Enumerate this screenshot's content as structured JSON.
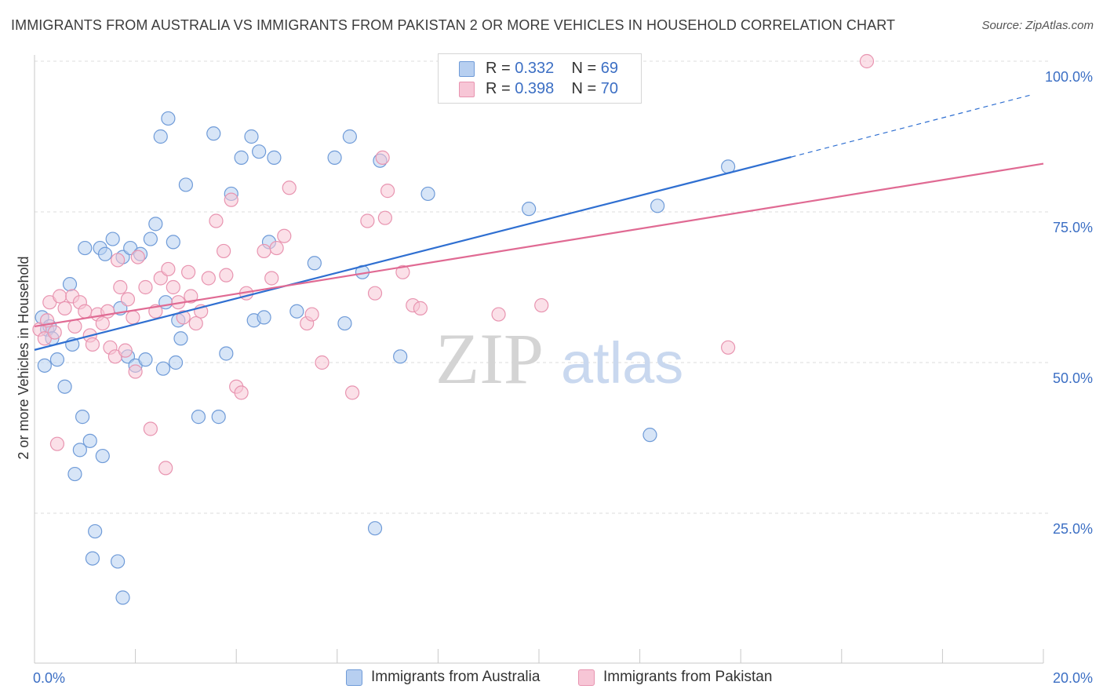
{
  "header": {
    "title": "IMMIGRANTS FROM AUSTRALIA VS IMMIGRANTS FROM PAKISTAN 2 OR MORE VEHICLES IN HOUSEHOLD CORRELATION CHART",
    "source": "Source: ZipAtlas.com"
  },
  "legend": {
    "r_label": "R =",
    "n_label": "N =",
    "rows": [
      {
        "r": "0.332",
        "n": "69"
      },
      {
        "r": "0.398",
        "n": "70"
      }
    ]
  },
  "watermark": {
    "zip": "ZIP",
    "atlas": "atlas"
  },
  "colors": {
    "australia_fill": "#b7cff0",
    "australia_stroke": "#6f9bd8",
    "australia_line": "#2f6fd1",
    "pakistan_fill": "#f7c6d6",
    "pakistan_stroke": "#e894b0",
    "pakistan_line": "#e06a93",
    "axis_text": "#3c6fc4",
    "grid": "#dddddd"
  },
  "chart_data": {
    "type": "scatter",
    "title": "IMMIGRANTS FROM AUSTRALIA VS IMMIGRANTS FROM PAKISTAN 2 OR MORE VEHICLES IN HOUSEHOLD CORRELATION CHART",
    "xlabel": "",
    "ylabel": "2 or more Vehicles in Household",
    "xlim": [
      0,
      20
    ],
    "ylim": [
      0,
      102
    ],
    "x_tick_labels": [
      "0.0%",
      "20.0%"
    ],
    "y_ticks": [
      25,
      50,
      75,
      100
    ],
    "y_tick_labels": [
      "25.0%",
      "50.0%",
      "75.0%",
      "100.0%"
    ],
    "grid": "horizontal dashed",
    "legend_position": "top-center",
    "series": [
      {
        "name": "Immigrants from Australia",
        "r": 0.332,
        "n": 69,
        "trend": {
          "x": [
            0,
            15
          ],
          "y": [
            52.1,
            84.1
          ],
          "extend_to_x": 19.8,
          "extend_to_y": 94.5
        },
        "points": [
          [
            0.15,
            57.5
          ],
          [
            0.25,
            55.5
          ],
          [
            0.2,
            49.5
          ],
          [
            0.3,
            56.0
          ],
          [
            0.35,
            54.0
          ],
          [
            0.45,
            50.5
          ],
          [
            0.6,
            46.0
          ],
          [
            0.7,
            63.0
          ],
          [
            0.75,
            53.0
          ],
          [
            0.8,
            31.5
          ],
          [
            0.9,
            35.5
          ],
          [
            0.95,
            41.0
          ],
          [
            1.0,
            69.0
          ],
          [
            1.1,
            37.0
          ],
          [
            1.15,
            17.5
          ],
          [
            1.2,
            22.0
          ],
          [
            1.3,
            69.0
          ],
          [
            1.35,
            34.5
          ],
          [
            1.4,
            68.0
          ],
          [
            1.55,
            70.5
          ],
          [
            1.65,
            17.0
          ],
          [
            1.7,
            59.0
          ],
          [
            1.75,
            67.5
          ],
          [
            1.75,
            11.0
          ],
          [
            1.85,
            51.0
          ],
          [
            1.9,
            69.0
          ],
          [
            2.0,
            49.5
          ],
          [
            2.1,
            68.0
          ],
          [
            2.2,
            50.5
          ],
          [
            2.3,
            70.5
          ],
          [
            2.4,
            73.0
          ],
          [
            2.5,
            87.5
          ],
          [
            2.55,
            49.0
          ],
          [
            2.6,
            60.0
          ],
          [
            2.65,
            90.5
          ],
          [
            2.75,
            70.0
          ],
          [
            2.8,
            50.0
          ],
          [
            2.85,
            57.0
          ],
          [
            2.9,
            54.0
          ],
          [
            3.0,
            79.5
          ],
          [
            3.25,
            41.0
          ],
          [
            3.55,
            88.0
          ],
          [
            3.65,
            41.0
          ],
          [
            3.8,
            51.5
          ],
          [
            3.9,
            78.0
          ],
          [
            4.1,
            84.0
          ],
          [
            4.3,
            87.5
          ],
          [
            4.35,
            57.0
          ],
          [
            4.45,
            85.0
          ],
          [
            4.55,
            57.5
          ],
          [
            4.65,
            70.0
          ],
          [
            4.75,
            84.0
          ],
          [
            5.2,
            58.5
          ],
          [
            5.55,
            66.5
          ],
          [
            5.95,
            84.0
          ],
          [
            6.15,
            56.5
          ],
          [
            6.25,
            87.5
          ],
          [
            6.5,
            65.0
          ],
          [
            6.75,
            22.5
          ],
          [
            6.85,
            83.5
          ],
          [
            7.25,
            51.0
          ],
          [
            7.8,
            78.0
          ],
          [
            9.8,
            75.5
          ],
          [
            12.2,
            38.0
          ],
          [
            12.35,
            76.0
          ],
          [
            13.75,
            82.5
          ]
        ]
      },
      {
        "name": "Immigrants from Pakistan",
        "r": 0.398,
        "n": 70,
        "trend": {
          "x": [
            0,
            20
          ],
          "y": [
            56.0,
            83.0
          ]
        },
        "points": [
          [
            0.1,
            55.5
          ],
          [
            0.2,
            54.0
          ],
          [
            0.25,
            57.0
          ],
          [
            0.3,
            60.0
          ],
          [
            0.4,
            55.0
          ],
          [
            0.45,
            36.5
          ],
          [
            0.5,
            61.0
          ],
          [
            0.6,
            59.0
          ],
          [
            0.75,
            61.0
          ],
          [
            0.8,
            56.0
          ],
          [
            0.9,
            60.0
          ],
          [
            1.0,
            58.5
          ],
          [
            1.1,
            54.5
          ],
          [
            1.15,
            53.0
          ],
          [
            1.25,
            58.0
          ],
          [
            1.35,
            56.5
          ],
          [
            1.45,
            58.5
          ],
          [
            1.5,
            52.5
          ],
          [
            1.6,
            51.0
          ],
          [
            1.65,
            67.0
          ],
          [
            1.7,
            62.5
          ],
          [
            1.8,
            52.0
          ],
          [
            1.85,
            60.5
          ],
          [
            1.95,
            57.5
          ],
          [
            2.0,
            48.5
          ],
          [
            2.05,
            67.5
          ],
          [
            2.2,
            62.5
          ],
          [
            2.3,
            39.0
          ],
          [
            2.4,
            58.5
          ],
          [
            2.5,
            64.0
          ],
          [
            2.6,
            32.5
          ],
          [
            2.65,
            65.5
          ],
          [
            2.75,
            62.5
          ],
          [
            2.85,
            60.0
          ],
          [
            2.95,
            57.5
          ],
          [
            3.05,
            65.0
          ],
          [
            3.1,
            61.0
          ],
          [
            3.2,
            56.5
          ],
          [
            3.3,
            58.5
          ],
          [
            3.45,
            64.0
          ],
          [
            3.6,
            73.5
          ],
          [
            3.75,
            68.5
          ],
          [
            3.8,
            64.5
          ],
          [
            3.9,
            77.0
          ],
          [
            4.0,
            46.0
          ],
          [
            4.1,
            45.0
          ],
          [
            4.2,
            61.5
          ],
          [
            4.55,
            68.5
          ],
          [
            4.7,
            64.0
          ],
          [
            4.8,
            69.0
          ],
          [
            4.95,
            71.0
          ],
          [
            5.05,
            79.0
          ],
          [
            5.4,
            56.5
          ],
          [
            5.5,
            58.0
          ],
          [
            5.7,
            50.0
          ],
          [
            6.3,
            45.0
          ],
          [
            6.6,
            73.5
          ],
          [
            6.75,
            61.5
          ],
          [
            6.9,
            84.0
          ],
          [
            6.95,
            74.0
          ],
          [
            7.0,
            78.5
          ],
          [
            7.3,
            65.0
          ],
          [
            7.5,
            59.5
          ],
          [
            7.65,
            59.0
          ],
          [
            9.2,
            58.0
          ],
          [
            10.05,
            59.5
          ],
          [
            13.75,
            52.5
          ],
          [
            16.5,
            100.0
          ]
        ]
      }
    ]
  },
  "bottom_legend": {
    "items": [
      "Immigrants from Australia",
      "Immigrants from Pakistan"
    ]
  }
}
